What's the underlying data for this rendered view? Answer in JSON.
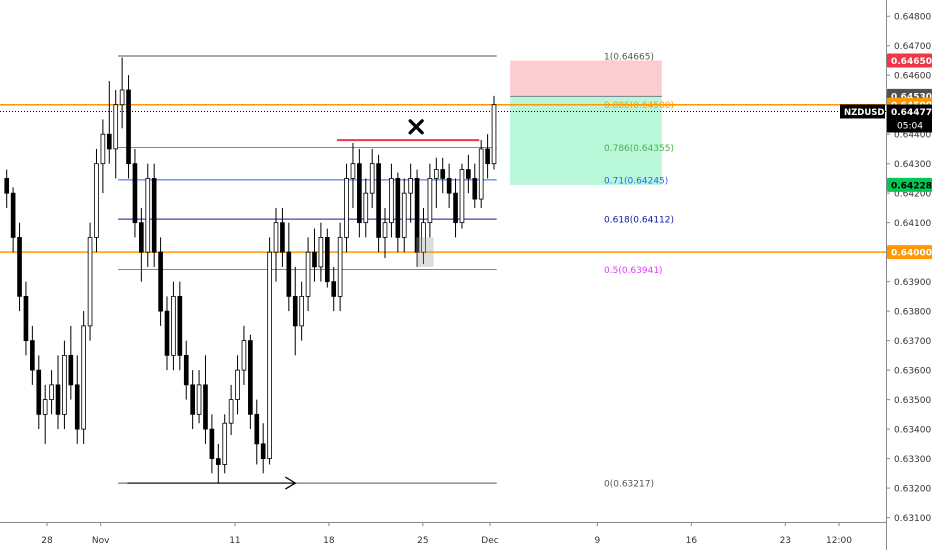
{
  "chart_data": {
    "type": "candlestick",
    "symbol": "NZDUSD",
    "last_price": "0.64477",
    "countdown": "05:04",
    "ylim": [
      0.63085,
      0.64855
    ],
    "y_ticks": [
      "0.64800",
      "0.64700",
      "0.64600",
      "0.64500",
      "0.64400",
      "0.64300",
      "0.64200",
      "0.64100",
      "0.64000",
      "0.63900",
      "0.63800",
      "0.63700",
      "0.63600",
      "0.63500",
      "0.63400",
      "0.63300",
      "0.63200",
      "0.63100"
    ],
    "x_ticks": [
      {
        "label": "28",
        "day": -4
      },
      {
        "label": "Nov",
        "day": 0
      },
      {
        "label": "11",
        "day": 10
      },
      {
        "label": "18",
        "day": 17
      },
      {
        "label": "25",
        "day": 24
      },
      {
        "label": "Dec",
        "day": 29
      },
      {
        "label": "9",
        "day": 37
      },
      {
        "label": "16",
        "day": 44
      },
      {
        "label": "23",
        "day": 51
      },
      {
        "label": "12:00",
        "day": 55
      }
    ],
    "x_range_days": [
      -7.5,
      58.5
    ],
    "price_badges": [
      {
        "label": "0.64650",
        "value": 0.6465,
        "bg": "#f23645",
        "fg": "#ffffff"
      },
      {
        "label": "0.64530",
        "value": 0.6453,
        "bg": "#505050",
        "fg": "#ffffff"
      },
      {
        "label": "0.64500",
        "value": 0.645,
        "bg": "#ff9800",
        "fg": "#ffffff"
      },
      {
        "label": "0.64228",
        "value": 0.64228,
        "bg": "#00c853",
        "fg": "#000000"
      },
      {
        "label": "0.64000",
        "value": 0.64,
        "bg": "#ff9800",
        "fg": "#ffffff"
      }
    ],
    "horizontal_lines": [
      {
        "value": 0.645,
        "color": "#ff9800"
      },
      {
        "value": 0.64,
        "color": "#ff9800"
      }
    ],
    "fib_levels": [
      {
        "label": "1(0.64665)",
        "value": 0.64665,
        "color": "#555555"
      },
      {
        "label": "0.886(0.64500)",
        "value": 0.645,
        "color": "#ff9800"
      },
      {
        "label": "0.786(0.64355)",
        "value": 0.64355,
        "color": "#4caf50"
      },
      {
        "label": "0.71(0.64245)",
        "value": 0.64245,
        "color": "#2962ff"
      },
      {
        "label": "0.618(0.64112)",
        "value": 0.64112,
        "color": "#0d1a9e"
      },
      {
        "label": "0.5(0.63941)",
        "value": 0.63941,
        "color": "#e040fb"
      },
      {
        "label": "0(0.63217)",
        "value": 0.63217,
        "color": "#555555"
      }
    ],
    "position": {
      "entry": 0.6453,
      "stop": 0.6465,
      "target": 0.64228,
      "x_start_day": 30.5,
      "x_end_day": 41.8
    },
    "resistance_line": {
      "value": 0.6438,
      "x_start_day": 17.6,
      "x_end_day": 28.2,
      "color": "#f23645"
    },
    "cross_marker": {
      "day": 23.5,
      "value": 0.64425
    },
    "arrow": {
      "value": 0.63217,
      "x_start_day": 2.0,
      "x_end_day": 14.5
    },
    "candles": [
      [
        0.6425,
        0.6428,
        0.6415,
        0.642
      ],
      [
        0.642,
        0.6422,
        0.64,
        0.6405
      ],
      [
        0.6405,
        0.641,
        0.638,
        0.6385
      ],
      [
        0.6385,
        0.639,
        0.6365,
        0.637
      ],
      [
        0.637,
        0.6375,
        0.6355,
        0.636
      ],
      [
        0.636,
        0.6365,
        0.634,
        0.6345
      ],
      [
        0.6345,
        0.6355,
        0.6335,
        0.635
      ],
      [
        0.635,
        0.636,
        0.6345,
        0.6355
      ],
      [
        0.6355,
        0.6365,
        0.634,
        0.6345
      ],
      [
        0.6345,
        0.637,
        0.634,
        0.6365
      ],
      [
        0.6365,
        0.6375,
        0.635,
        0.6355
      ],
      [
        0.6355,
        0.6365,
        0.6335,
        0.634
      ],
      [
        0.634,
        0.638,
        0.6335,
        0.6375
      ],
      [
        0.6375,
        0.641,
        0.637,
        0.6405
      ],
      [
        0.6405,
        0.6435,
        0.64,
        0.643
      ],
      [
        0.643,
        0.6445,
        0.642,
        0.644
      ],
      [
        0.644,
        0.6458,
        0.643,
        0.6435
      ],
      [
        0.6435,
        0.6455,
        0.6425,
        0.645
      ],
      [
        0.645,
        0.6466,
        0.6442,
        0.6455
      ],
      [
        0.6455,
        0.646,
        0.6425,
        0.643
      ],
      [
        0.643,
        0.6435,
        0.6405,
        0.641
      ],
      [
        0.641,
        0.6415,
        0.639,
        0.64
      ],
      [
        0.64,
        0.643,
        0.6395,
        0.6425
      ],
      [
        0.6425,
        0.643,
        0.6395,
        0.64
      ],
      [
        0.64,
        0.6405,
        0.6375,
        0.638
      ],
      [
        0.638,
        0.6385,
        0.636,
        0.6365
      ],
      [
        0.6365,
        0.639,
        0.636,
        0.6385
      ],
      [
        0.6385,
        0.639,
        0.636,
        0.6365
      ],
      [
        0.6365,
        0.637,
        0.635,
        0.6355
      ],
      [
        0.6355,
        0.636,
        0.634,
        0.6345
      ],
      [
        0.6345,
        0.636,
        0.6342,
        0.6355
      ],
      [
        0.6355,
        0.6365,
        0.6335,
        0.634
      ],
      [
        0.634,
        0.6345,
        0.6325,
        0.633
      ],
      [
        0.633,
        0.6335,
        0.63217,
        0.6328
      ],
      [
        0.6328,
        0.6345,
        0.6325,
        0.6342
      ],
      [
        0.6342,
        0.6355,
        0.6338,
        0.635
      ],
      [
        0.635,
        0.6365,
        0.6345,
        0.636
      ],
      [
        0.636,
        0.6375,
        0.6355,
        0.637
      ],
      [
        0.637,
        0.6372,
        0.634,
        0.6345
      ],
      [
        0.6345,
        0.635,
        0.6328,
        0.6335
      ],
      [
        0.6335,
        0.6342,
        0.6325,
        0.633
      ],
      [
        0.633,
        0.6405,
        0.6328,
        0.64
      ],
      [
        0.64,
        0.6415,
        0.639,
        0.641
      ],
      [
        0.641,
        0.6415,
        0.6395,
        0.64
      ],
      [
        0.64,
        0.641,
        0.638,
        0.6385
      ],
      [
        0.6385,
        0.6395,
        0.6365,
        0.6375
      ],
      [
        0.6375,
        0.639,
        0.637,
        0.6385
      ],
      [
        0.6385,
        0.6405,
        0.638,
        0.64
      ],
      [
        0.64,
        0.6408,
        0.639,
        0.6395
      ],
      [
        0.6395,
        0.641,
        0.639,
        0.6405
      ],
      [
        0.6405,
        0.6408,
        0.6388,
        0.639
      ],
      [
        0.639,
        0.6395,
        0.638,
        0.6385
      ],
      [
        0.6385,
        0.641,
        0.638,
        0.6405
      ],
      [
        0.6405,
        0.643,
        0.64,
        0.6425
      ],
      [
        0.6425,
        0.6437,
        0.6415,
        0.643
      ],
      [
        0.643,
        0.6435,
        0.6405,
        0.641
      ],
      [
        0.641,
        0.6425,
        0.6405,
        0.642
      ],
      [
        0.642,
        0.6435,
        0.6415,
        0.643
      ],
      [
        0.643,
        0.6433,
        0.64,
        0.6405
      ],
      [
        0.6405,
        0.6415,
        0.6398,
        0.641
      ],
      [
        0.641,
        0.643,
        0.6405,
        0.6425
      ],
      [
        0.6425,
        0.6427,
        0.64,
        0.6405
      ],
      [
        0.6405,
        0.6425,
        0.64,
        0.642
      ],
      [
        0.642,
        0.643,
        0.641,
        0.6425
      ],
      [
        0.6425,
        0.6428,
        0.6395,
        0.64
      ],
      [
        0.64,
        0.6415,
        0.6396,
        0.641
      ],
      [
        0.641,
        0.643,
        0.6405,
        0.6425
      ],
      [
        0.6425,
        0.6432,
        0.6415,
        0.6428
      ],
      [
        0.6428,
        0.6432,
        0.642,
        0.6425
      ],
      [
        0.6425,
        0.643,
        0.6415,
        0.642
      ],
      [
        0.642,
        0.6425,
        0.6405,
        0.641
      ],
      [
        0.641,
        0.643,
        0.6408,
        0.6428
      ],
      [
        0.6428,
        0.6433,
        0.642,
        0.6425
      ],
      [
        0.6425,
        0.643,
        0.6415,
        0.6418
      ],
      [
        0.6418,
        0.6438,
        0.6415,
        0.6435
      ],
      [
        0.6435,
        0.644,
        0.6425,
        0.643
      ],
      [
        0.643,
        0.6453,
        0.6428,
        0.645
      ]
    ]
  }
}
